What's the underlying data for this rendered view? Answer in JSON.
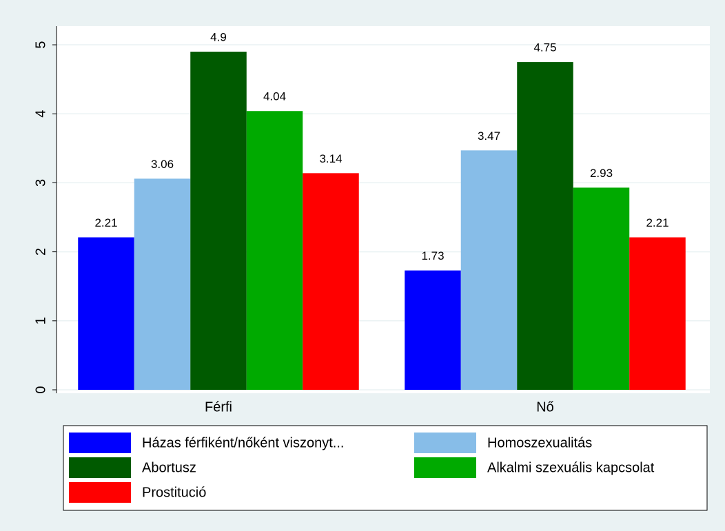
{
  "chart_data": {
    "type": "bar",
    "categories": [
      "Férfi",
      "Nő"
    ],
    "series": [
      {
        "name": "Házas férfiként/nőként viszonyt...",
        "color": "#0000ff",
        "values": [
          2.21,
          1.73
        ]
      },
      {
        "name": "Homoszexualitás",
        "color": "#87bde8",
        "values": [
          3.06,
          3.47
        ]
      },
      {
        "name": "Abortusz",
        "color": "#005a00",
        "values": [
          4.9,
          4.75
        ]
      },
      {
        "name": "Alkalmi szexuális kapcsolat",
        "color": "#00aa00",
        "values": [
          4.04,
          2.93
        ]
      },
      {
        "name": "Prostitució",
        "color": "#ff0000",
        "values": [
          3.14,
          2.21
        ]
      }
    ],
    "ylim": [
      0,
      5.27
    ],
    "yticks": [
      0,
      1,
      2,
      3,
      4,
      5
    ],
    "grid": true,
    "legend": "bottom"
  }
}
